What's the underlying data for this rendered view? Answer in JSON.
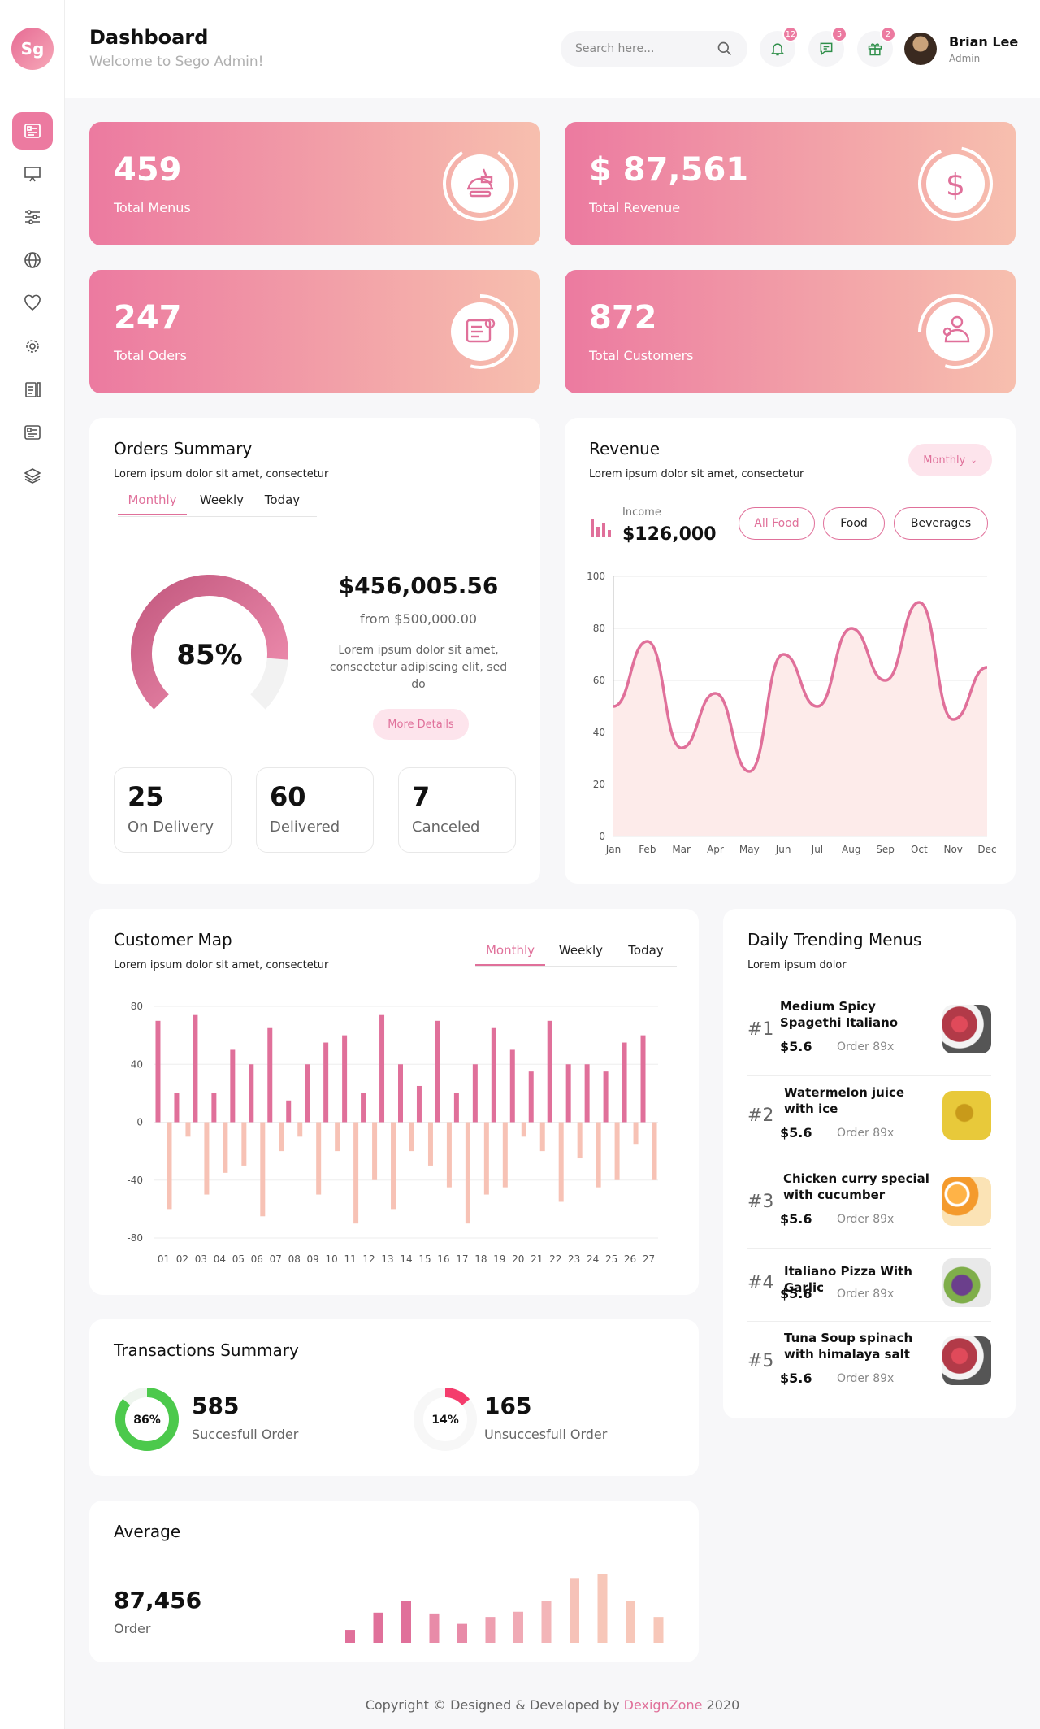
{
  "app": {
    "logo_text": "Sg"
  },
  "sidebar": {
    "items": [
      {
        "name": "dashboard",
        "icon": "dashboard-icon",
        "active": true
      },
      {
        "name": "presentation",
        "icon": "presentation-icon"
      },
      {
        "name": "controls",
        "icon": "sliders-icon"
      },
      {
        "name": "globe",
        "icon": "globe-icon"
      },
      {
        "name": "favorites",
        "icon": "heart-icon"
      },
      {
        "name": "settings",
        "icon": "gear-icon"
      },
      {
        "name": "clipboard",
        "icon": "clipboard-icon"
      },
      {
        "name": "reports",
        "icon": "report-icon"
      },
      {
        "name": "layers",
        "icon": "layers-icon"
      }
    ]
  },
  "header": {
    "title": "Dashboard",
    "subtitle": "Welcome to Sego Admin!",
    "search_placeholder": "Search here...",
    "notifications": {
      "bell": "12",
      "chat": "5",
      "gift": "2"
    },
    "user": {
      "name": "Brian Lee",
      "role": "Admin"
    }
  },
  "stats": [
    {
      "value": "459",
      "label": "Total Menus",
      "icon": "food-icon"
    },
    {
      "value": "$ 87,561",
      "label": "Total Revenue",
      "icon": "dollar-icon"
    },
    {
      "value": "247",
      "label": "Total Oders",
      "icon": "order-icon"
    },
    {
      "value": "872",
      "label": "Total Customers",
      "icon": "customers-icon"
    }
  ],
  "orders_summary": {
    "title": "Orders Summary",
    "subtitle": "Lorem ipsum dolor sit amet, consectetur",
    "tabs": [
      "Monthly",
      "Weekly",
      "Today"
    ],
    "percent": "85%",
    "percent_value": 0.85,
    "amount": "$456,005.56",
    "from": "from $500,000.00",
    "description": "Lorem ipsum dolor sit amet, consectetur adipiscing elit, sed do",
    "more_button": "More Details",
    "mini": [
      {
        "value": "25",
        "label": "On Delivery"
      },
      {
        "value": "60",
        "label": "Delivered"
      },
      {
        "value": "7",
        "label": "Canceled"
      }
    ]
  },
  "revenue": {
    "title": "Revenue",
    "subtitle": "Lorem ipsum dolor sit amet, consectetur",
    "period": "Monthly",
    "income_label": "Income",
    "income_value": "$126,000",
    "filters": [
      "All Food",
      "Food",
      "Beverages"
    ],
    "chart_data": {
      "type": "area",
      "categories": [
        "Jan",
        "Feb",
        "Mar",
        "Apr",
        "May",
        "Jun",
        "Jul",
        "Aug",
        "Sep",
        "Oct",
        "Nov",
        "Dec"
      ],
      "values": [
        50,
        75,
        34,
        55,
        25,
        70,
        50,
        80,
        60,
        90,
        45,
        65
      ],
      "ylim": [
        0,
        100
      ],
      "yticks": [
        0,
        20,
        40,
        60,
        80,
        100
      ],
      "color": "#e0709a",
      "fill": "#fdebea"
    }
  },
  "customer_map": {
    "title": "Customer Map",
    "subtitle": "Lorem ipsum dolor sit amet, consectetur",
    "tabs": [
      "Monthly",
      "Weekly",
      "Today"
    ],
    "chart_data": {
      "type": "bar",
      "categories": [
        "01",
        "02",
        "03",
        "04",
        "05",
        "06",
        "07",
        "08",
        "09",
        "10",
        "11",
        "12",
        "13",
        "14",
        "15",
        "16",
        "17",
        "18",
        "19",
        "20",
        "21",
        "22",
        "23",
        "24",
        "25",
        "26",
        "27"
      ],
      "series": [
        {
          "values": [
            70,
            20,
            74,
            20,
            50,
            40,
            65,
            15,
            40,
            55,
            60,
            20,
            74,
            40,
            25,
            70,
            20,
            40,
            65,
            50,
            35,
            70,
            40,
            40,
            35,
            55,
            60
          ],
          "color": "#e0709a"
        },
        {
          "values": [
            -60,
            -10,
            -50,
            -35,
            -30,
            -65,
            -20,
            -10,
            -50,
            -20,
            -70,
            -40,
            -60,
            -20,
            -30,
            -45,
            -70,
            -50,
            -45,
            -10,
            -20,
            -55,
            -25,
            -45,
            -40,
            -15,
            -40
          ],
          "color": "#f7c2b5"
        }
      ],
      "ylim": [
        -80,
        80
      ],
      "yticks": [
        80,
        40,
        0,
        -40,
        -80
      ]
    }
  },
  "trending": {
    "title": "Daily Trending Menus",
    "subtitle": "Lorem ipsum dolor",
    "items": [
      {
        "rank": "#1",
        "name": "Medium Spicy Spagethi Italiano",
        "price": "$5.6",
        "order": "Order 89x",
        "color": "#b23a48"
      },
      {
        "rank": "#2",
        "name": "Watermelon juice with ice",
        "price": "$5.6",
        "order": "Order 89x",
        "color": "#e8c93a"
      },
      {
        "rank": "#3",
        "name": "Chicken curry special with cucumber",
        "price": "$5.6",
        "order": "Order 89x",
        "color": "#f49a2c"
      },
      {
        "rank": "#4",
        "name": "Italiano Pizza With Garlic",
        "price": "$5.6",
        "order": "Order 89x",
        "color": "#6b3f8c"
      },
      {
        "rank": "#5",
        "name": "Tuna Soup spinach with himalaya salt",
        "price": "$5.6",
        "order": "Order 89x",
        "color": "#b23a48"
      }
    ]
  },
  "transactions": {
    "title": "Transactions Summary",
    "items": [
      {
        "percent": "86%",
        "fraction": 0.86,
        "value": "585",
        "label": "Succesfull Order",
        "color": "#4cc94c"
      },
      {
        "percent": "14%",
        "fraction": 0.14,
        "value": "165",
        "label": "Unsuccesfull Order",
        "color": "#f43c6c"
      }
    ]
  },
  "average": {
    "title": "Average",
    "value": "87,456",
    "label": "Order",
    "chart_data": {
      "type": "bar",
      "values": [
        15,
        35,
        48,
        34,
        22,
        30,
        36,
        48,
        75,
        80,
        48,
        30
      ],
      "colors": [
        "#e0709a",
        "#e0709a",
        "#e0709a",
        "#e88ba8",
        "#e88ba8",
        "#ee9fb0",
        "#f0aab5",
        "#f3b5b8",
        "#f6c2b8",
        "#f7c7b9",
        "#f7c7b9",
        "#f7c7b9"
      ]
    }
  },
  "footer": {
    "prefix": "Copyright © Designed & Developed by ",
    "brand": "DexignZone",
    "suffix": " 2020"
  }
}
